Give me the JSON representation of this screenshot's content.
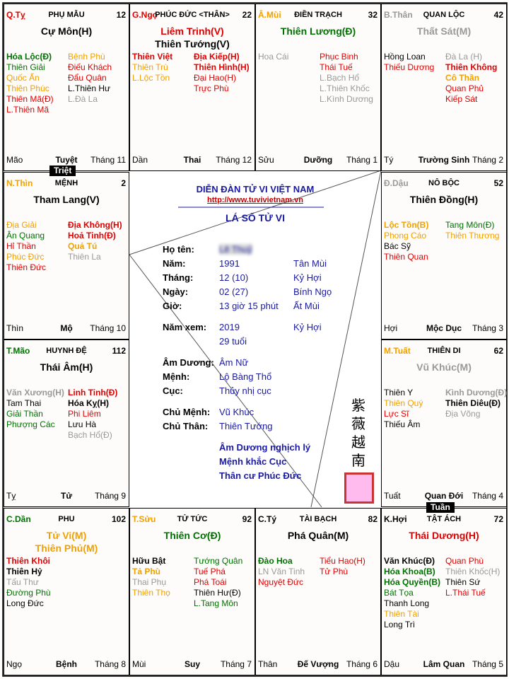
{
  "palaces": [
    {
      "corner": {
        "text": "Q.Tỵ",
        "color": "#e00000"
      },
      "name": "PHỤ MẪU",
      "number": 12,
      "main": [
        {
          "text": "Cự Môn(H)",
          "color": "#000000"
        }
      ],
      "left": [
        {
          "text": "Hóa Lộc(Đ)",
          "color": "#007000",
          "bold": true
        },
        {
          "text": "Thiên Giải",
          "color": "#007000"
        },
        {
          "text": "Quốc Ấn",
          "color": "#f0a000"
        },
        {
          "text": "Thiên Phúc",
          "color": "#f0a000"
        },
        {
          "text": "Thiên Mã(Đ)",
          "color": "#e00000"
        },
        {
          "text": "L.Thiên Mã",
          "color": "#e00000"
        }
      ],
      "right": [
        {
          "text": "Bệnh Phù",
          "color": "#f0a000"
        },
        {
          "text": "Điếu Khách",
          "color": "#e00000"
        },
        {
          "text": "Đẩu Quân",
          "color": "#e00000"
        },
        {
          "text": "L.Thiên Hư",
          "color": "#000000"
        },
        {
          "text": "L.Đà La",
          "color": "#999999"
        }
      ],
      "bottom": [
        "Mão",
        "Tuyệt",
        "Tháng 11"
      ]
    },
    {
      "corner": {
        "text": "G.Ngọ",
        "color": "#e00000"
      },
      "name": "PHÚC ĐỨC <THÂN>",
      "number": 22,
      "main": [
        {
          "text": "Liêm Trinh(V)",
          "color": "#e00000"
        },
        {
          "text": "Thiên Tướng(V)",
          "color": "#000000"
        }
      ],
      "left": [
        {
          "text": "Thiên Việt",
          "color": "#e00000",
          "bold": true
        },
        {
          "text": "Thiên Trù",
          "color": "#f0a000"
        },
        {
          "text": "L.Lộc Tồn",
          "color": "#f0a000"
        }
      ],
      "right": [
        {
          "text": "Địa Kiếp(H)",
          "color": "#e00000",
          "bold": true
        },
        {
          "text": "Thiên Hình(H)",
          "color": "#e00000",
          "bold": true
        },
        {
          "text": "Đại Hao(H)",
          "color": "#e00000"
        },
        {
          "text": "Trực Phù",
          "color": "#e00000"
        }
      ],
      "bottom": [
        "Dần",
        "Thai",
        "Tháng 12"
      ]
    },
    {
      "corner": {
        "text": "Â.Mùi",
        "color": "#f0a000"
      },
      "name": "ĐIỀN TRẠCH",
      "number": 32,
      "main": [
        {
          "text": "Thiên Lương(Đ)",
          "color": "#007000"
        }
      ],
      "left": [
        {
          "text": "Hoa Cái",
          "color": "#999999"
        }
      ],
      "right": [
        {
          "text": "Phục Binh",
          "color": "#e00000"
        },
        {
          "text": "Thái Tuế",
          "color": "#e00000"
        },
        {
          "text": "L.Bạch Hổ",
          "color": "#999999"
        },
        {
          "text": "L.Thiên Khốc",
          "color": "#999999"
        },
        {
          "text": "L.Kình Dương",
          "color": "#999999"
        }
      ],
      "bottom": [
        "Sửu",
        "Dưỡng",
        "Tháng 1"
      ]
    },
    {
      "corner": {
        "text": "B.Thân",
        "color": "#999999"
      },
      "name": "QUAN LỘC",
      "number": 42,
      "main": [
        {
          "text": "Thất Sát(M)",
          "color": "#999999"
        }
      ],
      "left": [
        {
          "text": "Hồng Loan",
          "color": "#000000"
        },
        {
          "text": "Thiếu Dương",
          "color": "#e00000"
        }
      ],
      "right": [
        {
          "text": "Đà La (H)",
          "color": "#999999"
        },
        {
          "text": "Thiên Không",
          "color": "#e00000",
          "bold": true
        },
        {
          "text": "Cô Thần",
          "color": "#f0a000",
          "bold": true
        },
        {
          "text": "Quan Phủ",
          "color": "#e00000"
        },
        {
          "text": "Kiếp Sát",
          "color": "#e00000"
        }
      ],
      "bottom": [
        "Tý",
        "Trường Sinh",
        "Tháng 2"
      ]
    },
    {
      "corner": {
        "text": "Đ.Dậu",
        "color": "#999999"
      },
      "name": "NÔ BỘC",
      "number": 52,
      "main": [
        {
          "text": "Thiên Đồng(H)",
          "color": "#000000"
        }
      ],
      "left": [
        {
          "text": "Lộc Tồn(B)",
          "color": "#f0a000",
          "bold": true
        },
        {
          "text": "Phong Cáo",
          "color": "#f0a000"
        },
        {
          "text": "Bác Sỹ",
          "color": "#000000"
        },
        {
          "text": "Thiên Quan",
          "color": "#e00000"
        }
      ],
      "right": [
        {
          "text": "Tang Môn(Đ)",
          "color": "#007000"
        },
        {
          "text": "Thiên Thương",
          "color": "#f0a000"
        }
      ],
      "bottom": [
        "Hợi",
        "Mộc Dục",
        "Tháng 3"
      ]
    },
    {
      "corner": {
        "text": "M.Tuất",
        "color": "#f0a000"
      },
      "name": "THIÊN DI",
      "number": 62,
      "main": [
        {
          "text": "Vũ Khúc(M)",
          "color": "#999999"
        }
      ],
      "left": [
        {
          "text": "Thiên Y",
          "color": "#000000"
        },
        {
          "text": "Thiên Quý",
          "color": "#f0a000"
        },
        {
          "text": "Lực Sĩ",
          "color": "#e00000"
        },
        {
          "text": "Thiếu Âm",
          "color": "#000000"
        }
      ],
      "right": [
        {
          "text": "Kình Dương(Đ)",
          "color": "#999999",
          "bold": true
        },
        {
          "text": "Thiên Diêu(Đ)",
          "color": "#000000",
          "bold": true
        },
        {
          "text": "Địa Võng",
          "color": "#999999"
        }
      ],
      "bottom": [
        "Tuất",
        "Quan Đới",
        "Tháng 4"
      ]
    },
    {
      "corner": {
        "text": "K.Hợi",
        "color": "#000000"
      },
      "name": "TẬT ÁCH",
      "number": 72,
      "main": [
        {
          "text": "Thái Dương(H)",
          "color": "#e00000"
        }
      ],
      "left": [
        {
          "text": "Văn Khúc(Đ)",
          "color": "#000000",
          "bold": true
        },
        {
          "text": "Hóa Khoa(B)",
          "color": "#007000",
          "bold": true
        },
        {
          "text": "Hóa Quyền(B)",
          "color": "#007000",
          "bold": true
        },
        {
          "text": "Bát Tọa",
          "color": "#007000"
        },
        {
          "text": "Thanh Long",
          "color": "#000000"
        },
        {
          "text": "Thiên Tài",
          "color": "#f0a000"
        },
        {
          "text": "Long Trì",
          "color": "#000000"
        }
      ],
      "right": [
        {
          "text": "Quan Phù",
          "color": "#e00000"
        },
        {
          "text": "Thiên Khốc(H)",
          "color": "#999999"
        },
        {
          "text": "Thiên Sứ",
          "color": "#000000"
        },
        {
          "text": "L.Thái Tuế",
          "color": "#e00000"
        }
      ],
      "bottom": [
        "Dậu",
        "Lâm Quan",
        "Tháng 5"
      ]
    },
    {
      "corner": {
        "text": "C.Tý",
        "color": "#000000"
      },
      "name": "TÀI BẠCH",
      "number": 82,
      "main": [
        {
          "text": "Phá Quân(M)",
          "color": "#000000"
        }
      ],
      "left": [
        {
          "text": "Đào Hoa",
          "color": "#007000",
          "bold": true
        },
        {
          "text": "LN Văn Tinh",
          "color": "#999999"
        },
        {
          "text": "Nguyệt Đức",
          "color": "#e00000"
        }
      ],
      "right": [
        {
          "text": "Tiểu Hao(H)",
          "color": "#e00000"
        },
        {
          "text": "Tử Phù",
          "color": "#e00000"
        }
      ],
      "bottom": [
        "Thân",
        "Đế Vượng",
        "Tháng 6"
      ]
    },
    {
      "corner": {
        "text": "T.Sửu",
        "color": "#f0a000"
      },
      "name": "TỬ TỨC",
      "number": 92,
      "main": [
        {
          "text": "Thiên Cơ(Đ)",
          "color": "#007000"
        }
      ],
      "left": [
        {
          "text": "Hữu Bật",
          "color": "#000000",
          "bold": true
        },
        {
          "text": "Tả Phù",
          "color": "#f0a000",
          "bold": true
        },
        {
          "text": "Thai Phụ",
          "color": "#999999"
        },
        {
          "text": "Thiên Thọ",
          "color": "#f0a000"
        }
      ],
      "right": [
        {
          "text": "Tướng Quân",
          "color": "#007000"
        },
        {
          "text": "Tuế Phá",
          "color": "#e00000"
        },
        {
          "text": "Phá Toái",
          "color": "#e00000"
        },
        {
          "text": "Thiên Hư(Đ)",
          "color": "#000000"
        },
        {
          "text": "L.Tang Môn",
          "color": "#007000"
        }
      ],
      "bottom": [
        "Mùi",
        "Suy",
        "Tháng 7"
      ]
    },
    {
      "corner": {
        "text": "C.Dần",
        "color": "#007000"
      },
      "name": "PHU",
      "number": 102,
      "main": [
        {
          "text": "Tử Vi(M)",
          "color": "#f0a000"
        },
        {
          "text": "Thiên Phủ(M)",
          "color": "#f0a000"
        }
      ],
      "left": [
        {
          "text": "Thiên Khôi",
          "color": "#e00000",
          "bold": true
        },
        {
          "text": "Thiên Hỷ",
          "color": "#000000",
          "bold": true
        },
        {
          "text": "Tấu Thư",
          "color": "#999999"
        },
        {
          "text": "Đường Phù",
          "color": "#007000"
        },
        {
          "text": "Long Đức",
          "color": "#000000"
        }
      ],
      "right": [],
      "bottom": [
        "Ngọ",
        "Bệnh",
        "Tháng 8"
      ]
    },
    {
      "corner": {
        "text": "T.Mão",
        "color": "#007000"
      },
      "name": "HUYNH ĐỆ",
      "number": 112,
      "main": [
        {
          "text": "Thái Âm(H)",
          "color": "#000000"
        }
      ],
      "left": [
        {
          "text": "Văn Xương(H)",
          "color": "#999999",
          "bold": true
        },
        {
          "text": "Tam Thai",
          "color": "#000000"
        },
        {
          "text": "Giải Thần",
          "color": "#007000"
        },
        {
          "text": "Phượng Các",
          "color": "#007000"
        }
      ],
      "right": [
        {
          "text": "Linh Tinh(Đ)",
          "color": "#e00000",
          "bold": true
        },
        {
          "text": "Hóa Kỵ(H)",
          "color": "#000000",
          "bold": true
        },
        {
          "text": "Phi Liêm",
          "color": "#e00000"
        },
        {
          "text": "Lưu Hà",
          "color": "#000000"
        },
        {
          "text": "Bạch Hổ(Đ)",
          "color": "#999999"
        }
      ],
      "bottom": [
        "Tỵ",
        "Tử",
        "Tháng 9"
      ]
    },
    {
      "corner": {
        "text": "N.Thìn",
        "color": "#f0a000"
      },
      "name": "MỆNH",
      "number": 2,
      "main": [
        {
          "text": "Tham Lang(V)",
          "color": "#000000"
        }
      ],
      "left": [
        {
          "text": "Địa Giải",
          "color": "#f0a000"
        },
        {
          "text": "Ân Quang",
          "color": "#007000"
        },
        {
          "text": "Hỉ Thần",
          "color": "#e00000"
        },
        {
          "text": "Phúc Đức",
          "color": "#f0a000"
        },
        {
          "text": "Thiên Đức",
          "color": "#e00000"
        }
      ],
      "right": [
        {
          "text": "Địa Không(H)",
          "color": "#e00000",
          "bold": true
        },
        {
          "text": "Hoả Tinh(Đ)",
          "color": "#e00000",
          "bold": true
        },
        {
          "text": "Quả Tú",
          "color": "#f0a000",
          "bold": true
        },
        {
          "text": "Thiên La",
          "color": "#999999"
        }
      ],
      "bottom": [
        "Thìn",
        "Mộ",
        "Tháng 10"
      ]
    }
  ],
  "badges": [
    "Triệt",
    "Tuần"
  ],
  "center": {
    "forum": "DIỄN ĐÀN TỬ VI VIỆT NAM",
    "url": "http://www.tuvivietnam.vn",
    "title": "LÁ SỐ TỬ VI",
    "rows": [
      [
        "Họ tên:",
        "Lê Thuỷ"
      ],
      [
        "Năm:",
        "1991",
        "Tân Mùi"
      ],
      [
        "Tháng:",
        "12 (10)",
        "Kỷ Hợi"
      ],
      [
        "Ngày:",
        "02 (27)",
        "Bính Ngọ"
      ],
      [
        "Giờ:",
        "13 giờ 15 phút",
        "Ất Mùi"
      ],
      [
        "Năm xem:",
        "2019",
        "Kỷ Hợi"
      ],
      [
        "Âm Dương:",
        "Âm Nữ"
      ],
      [
        "Mệnh:",
        "Lộ Bàng Thổ"
      ],
      [
        "Cục:",
        "Thủy nhị cục"
      ],
      [
        "Chủ Mệnh:",
        "Vũ Khúc"
      ],
      [
        "Chủ Thân:",
        "Thiên Tướng"
      ]
    ],
    "age": "29 tuổi",
    "notes": [
      "Âm Dương nghịch lý",
      "Mệnh khắc Cục",
      "Thân cư Phúc Đức"
    ],
    "seal_text": "紫薇越南"
  }
}
